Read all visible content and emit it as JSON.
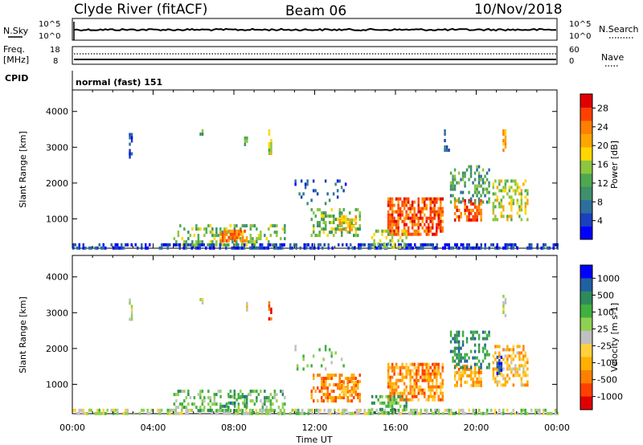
{
  "header": {
    "station": "Clyde River (fitACF)",
    "beam": "Beam 06",
    "date": "10/Nov/2018"
  },
  "status_panels": {
    "nsky_label": "N.Sky",
    "nsearch_label": "N.Search",
    "freq_label_1": "Freq.",
    "freq_label_2": "[MHz]",
    "nave_label": "Nave",
    "cpid_label": "CPID",
    "left_top_1": "10^5",
    "left_bottom_1": "10^0",
    "right_top_1": "10^5",
    "right_bottom_1": "10^0",
    "left_top_2": "18",
    "left_bottom_2": "8",
    "right_top_2": "60",
    "right_bottom_2": "0",
    "cpid_text": "normal (fast) 151"
  },
  "colors": {
    "power": [
      "#0000ff",
      "#1a3fbf",
      "#2e6e9e",
      "#3f8f6a",
      "#4fa84f",
      "#8cc63f",
      "#ffd700",
      "#ffa500",
      "#ff7f00",
      "#ff4000",
      "#e00000"
    ],
    "velocity": [
      "#e00000",
      "#ff4000",
      "#ff8000",
      "#ffb000",
      "#ffd040",
      "#c0c0c0",
      "#90d050",
      "#40b040",
      "#2e8a5a",
      "#2060a0",
      "#0000ff"
    ]
  },
  "chart_data": [
    {
      "type": "heatmap",
      "name": "power",
      "xlabel": "",
      "ylabel": "Slant Range [km]",
      "x_ticks": [
        "00:00",
        "04:00",
        "08:00",
        "12:00",
        "16:00",
        "20:00",
        "00:00"
      ],
      "x_range_hours": [
        0,
        24
      ],
      "y_ticks": [
        1000,
        2000,
        3000,
        4000
      ],
      "y_range_km": [
        180,
        4600
      ],
      "colorbar": {
        "label": "Power [dB]",
        "ticks": [
          "4",
          "8",
          "12",
          "16",
          "20",
          "24",
          "28"
        ],
        "range": [
          0,
          31
        ]
      },
      "regions": [
        {
          "t0": 0.0,
          "t1": 24.0,
          "r0": 190,
          "r1": 320,
          "level": 0.1,
          "density": 0.55
        },
        {
          "t0": 5.0,
          "t1": 10.5,
          "r0": 250,
          "r1": 850,
          "level": 0.45,
          "density": 0.35
        },
        {
          "t0": 7.3,
          "t1": 8.6,
          "r0": 400,
          "r1": 700,
          "level": 0.8,
          "density": 0.45
        },
        {
          "t0": 11.8,
          "t1": 14.2,
          "r0": 500,
          "r1": 1300,
          "level": 0.45,
          "density": 0.45
        },
        {
          "t0": 13.2,
          "t1": 14.0,
          "r0": 700,
          "r1": 1100,
          "level": 0.65,
          "density": 0.5
        },
        {
          "t0": 15.6,
          "t1": 18.3,
          "r0": 550,
          "r1": 1600,
          "level": 0.85,
          "density": 0.7
        },
        {
          "t0": 14.8,
          "t1": 16.5,
          "r0": 200,
          "r1": 700,
          "level": 0.5,
          "density": 0.4
        },
        {
          "t0": 18.9,
          "t1": 20.2,
          "r0": 950,
          "r1": 1550,
          "level": 0.85,
          "density": 0.65
        },
        {
          "t0": 18.7,
          "t1": 20.6,
          "r0": 1500,
          "r1": 2500,
          "level": 0.35,
          "density": 0.35
        },
        {
          "t0": 20.8,
          "t1": 22.5,
          "r0": 1000,
          "r1": 2100,
          "level": 0.55,
          "density": 0.45
        },
        {
          "t0": 11.0,
          "t1": 13.5,
          "r0": 1400,
          "r1": 2100,
          "level": 0.15,
          "density": 0.15
        },
        {
          "t0": 2.8,
          "t1": 2.9,
          "r0": 2700,
          "r1": 3400,
          "level": 0.1,
          "density": 0.6
        },
        {
          "t0": 6.3,
          "t1": 6.4,
          "r0": 3300,
          "r1": 3500,
          "level": 0.4,
          "density": 0.6
        },
        {
          "t0": 8.5,
          "t1": 8.6,
          "r0": 3100,
          "r1": 3300,
          "level": 0.4,
          "density": 0.6
        },
        {
          "t0": 9.7,
          "t1": 9.8,
          "r0": 2800,
          "r1": 3500,
          "level": 0.55,
          "density": 0.6
        },
        {
          "t0": 21.3,
          "t1": 21.4,
          "r0": 2900,
          "r1": 3500,
          "level": 0.7,
          "density": 0.6
        },
        {
          "t0": 18.4,
          "t1": 18.6,
          "r0": 2900,
          "r1": 3500,
          "level": 0.2,
          "density": 0.5
        }
      ]
    },
    {
      "type": "heatmap",
      "name": "velocity",
      "xlabel": "Time UT",
      "ylabel": "Slant Range [km]",
      "x_ticks": [
        "00:00",
        "04:00",
        "08:00",
        "12:00",
        "16:00",
        "20:00",
        "00:00"
      ],
      "x_range_hours": [
        0,
        24
      ],
      "y_ticks": [
        1000,
        2000,
        3000,
        4000
      ],
      "y_range_km": [
        180,
        4600
      ],
      "colorbar": {
        "label": "Velocity [m s-1]",
        "ticks": [
          "1000",
          "500",
          "100",
          "25",
          "-25",
          "-100",
          "-500",
          "-1000"
        ],
        "range": [
          -1000,
          1000
        ]
      },
      "regions": [
        {
          "t0": 0.0,
          "t1": 24.0,
          "r0": 190,
          "r1": 320,
          "level": 0.55,
          "density": 0.55
        },
        {
          "t0": 5.0,
          "t1": 10.5,
          "r0": 250,
          "r1": 850,
          "level": 0.65,
          "density": 0.35
        },
        {
          "t0": 7.3,
          "t1": 8.6,
          "r0": 400,
          "r1": 700,
          "level": 0.75,
          "density": 0.45
        },
        {
          "t0": 11.8,
          "t1": 14.2,
          "r0": 500,
          "r1": 1300,
          "level": 0.2,
          "density": 0.45
        },
        {
          "t0": 13.2,
          "t1": 14.0,
          "r0": 700,
          "r1": 1100,
          "level": 0.3,
          "density": 0.5
        },
        {
          "t0": 15.6,
          "t1": 18.3,
          "r0": 550,
          "r1": 1600,
          "level": 0.25,
          "density": 0.7
        },
        {
          "t0": 14.8,
          "t1": 16.5,
          "r0": 200,
          "r1": 700,
          "level": 0.7,
          "density": 0.4
        },
        {
          "t0": 18.9,
          "t1": 20.2,
          "r0": 950,
          "r1": 1550,
          "level": 0.28,
          "density": 0.65
        },
        {
          "t0": 18.7,
          "t1": 20.6,
          "r0": 1500,
          "r1": 2500,
          "level": 0.8,
          "density": 0.35
        },
        {
          "t0": 20.8,
          "t1": 22.5,
          "r0": 1000,
          "r1": 2100,
          "level": 0.35,
          "density": 0.45
        },
        {
          "t0": 11.0,
          "t1": 13.5,
          "r0": 1400,
          "r1": 2100,
          "level": 0.6,
          "density": 0.15
        },
        {
          "t0": 2.8,
          "t1": 2.9,
          "r0": 2700,
          "r1": 3400,
          "level": 0.5,
          "density": 0.6
        },
        {
          "t0": 6.3,
          "t1": 6.4,
          "r0": 3300,
          "r1": 3500,
          "level": 0.45,
          "density": 0.6
        },
        {
          "t0": 8.5,
          "t1": 8.6,
          "r0": 3100,
          "r1": 3300,
          "level": 0.4,
          "density": 0.6
        },
        {
          "t0": 9.7,
          "t1": 9.8,
          "r0": 2800,
          "r1": 3500,
          "level": 0.15,
          "density": 0.6
        },
        {
          "t0": 21.3,
          "t1": 21.4,
          "r0": 2900,
          "r1": 3500,
          "level": 0.5,
          "density": 0.6
        },
        {
          "t0": 21.0,
          "t1": 21.2,
          "r0": 1300,
          "r1": 1800,
          "level": 0.98,
          "density": 0.7
        }
      ]
    }
  ]
}
